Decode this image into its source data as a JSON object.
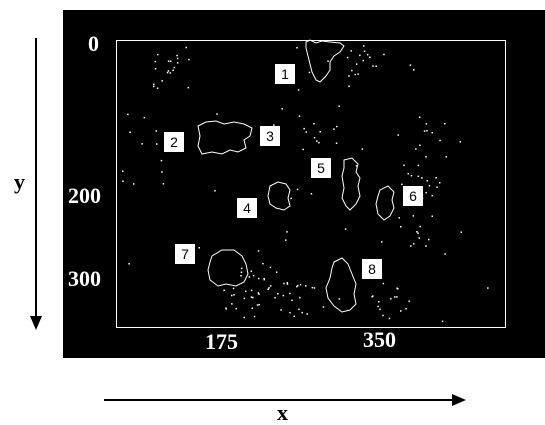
{
  "axes": {
    "x_label": "x",
    "y_label": "y",
    "y_ticks": [
      "0",
      "200",
      "300"
    ],
    "x_ticks": [
      "175",
      "350"
    ]
  },
  "regions": [
    "1",
    "2",
    "3",
    "4",
    "5",
    "6",
    "7",
    "8"
  ],
  "colors": {
    "background": "#000000",
    "foreground": "#ffffff",
    "text_outer": "#000000"
  }
}
